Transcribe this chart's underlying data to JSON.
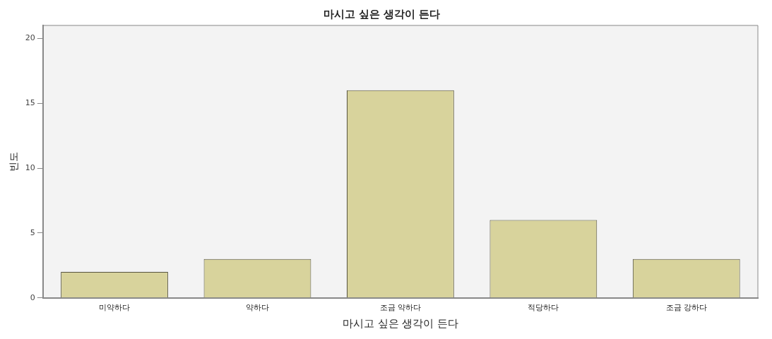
{
  "chart_data": {
    "type": "bar",
    "title": "마시고 싶은 생각이 든다",
    "xlabel": "마시고 싶은 생각이 든다",
    "ylabel": "빈도",
    "categories": [
      "미약하다",
      "약하다",
      "조금 약하다",
      "적당하다",
      "조금 강하다"
    ],
    "values": [
      2,
      3,
      16,
      6,
      3
    ],
    "color": "#d8d39c",
    "ylim": [
      0,
      21
    ],
    "yticks": [
      0,
      5,
      10,
      15,
      20
    ],
    "grid": false,
    "legend": false
  }
}
